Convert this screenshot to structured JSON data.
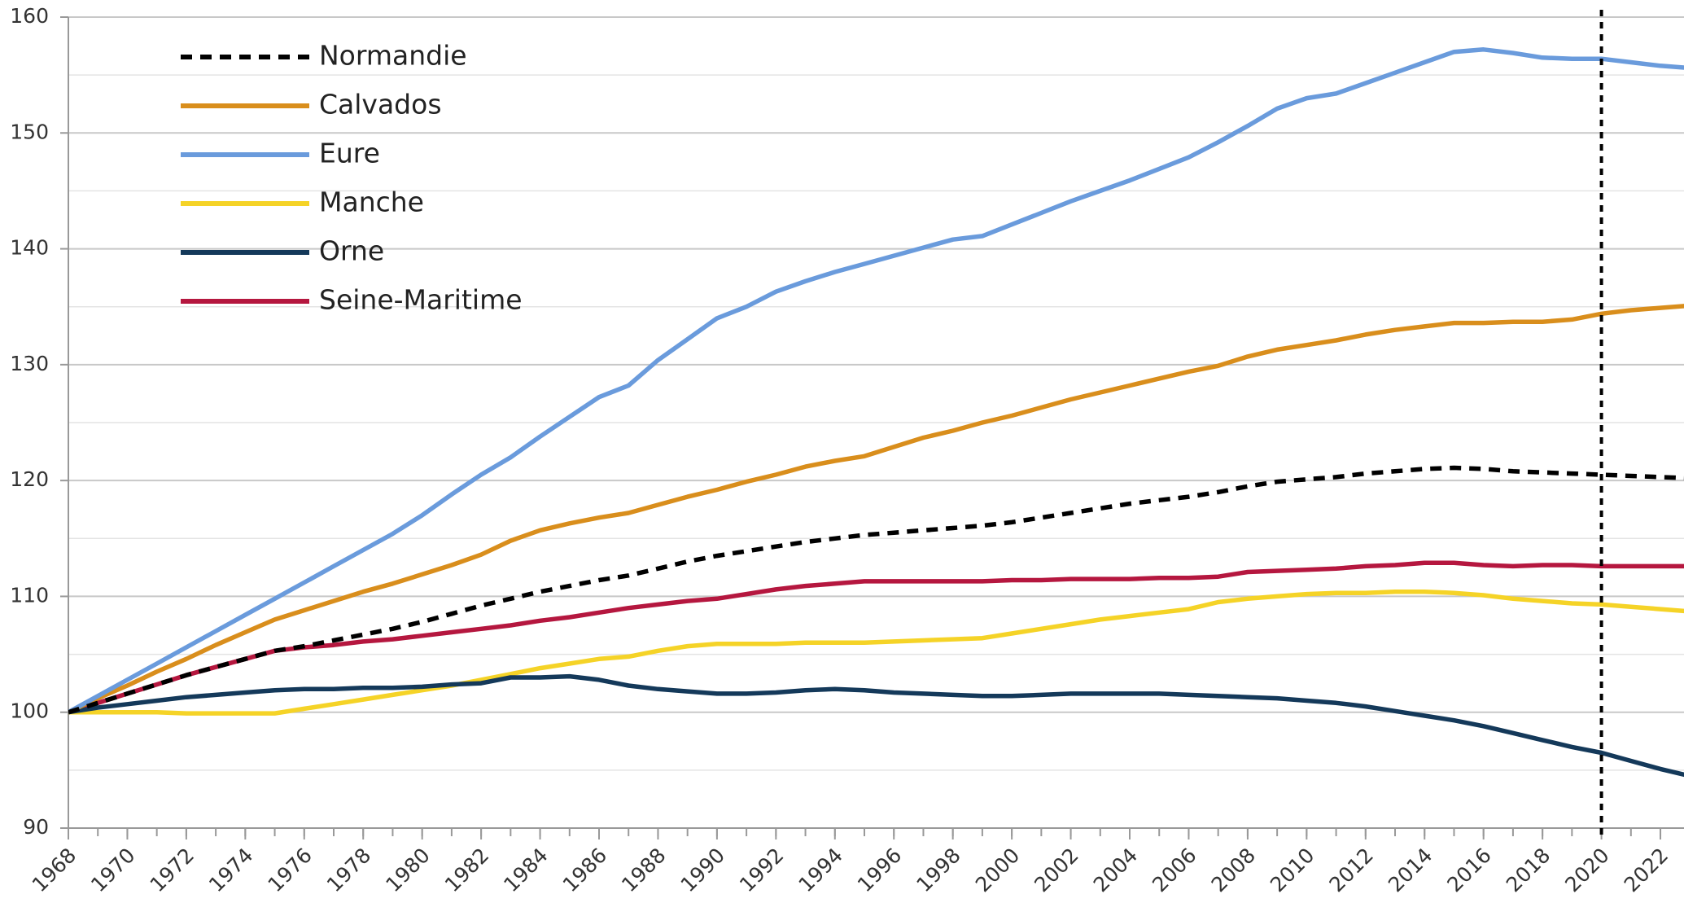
{
  "chart_data": {
    "type": "line",
    "x": [
      1968,
      1969,
      1970,
      1971,
      1972,
      1973,
      1974,
      1975,
      1976,
      1977,
      1978,
      1979,
      1980,
      1981,
      1982,
      1983,
      1984,
      1985,
      1986,
      1987,
      1988,
      1989,
      1990,
      1991,
      1992,
      1993,
      1994,
      1995,
      1996,
      1997,
      1998,
      1999,
      2000,
      2001,
      2002,
      2003,
      2004,
      2005,
      2006,
      2007,
      2008,
      2009,
      2010,
      2011,
      2012,
      2013,
      2014,
      2015,
      2016,
      2017,
      2018,
      2019,
      2020,
      2021,
      2022,
      2023
    ],
    "series": [
      {
        "name": "Normandie",
        "color": "#000000",
        "dashed": true,
        "values": [
          100,
          100.8,
          101.6,
          102.4,
          103.2,
          103.9,
          104.6,
          105.3,
          105.7,
          106.2,
          106.7,
          107.2,
          107.8,
          108.5,
          109.2,
          109.8,
          110.4,
          110.9,
          111.4,
          111.8,
          112.4,
          113,
          113.5,
          113.9,
          114.3,
          114.7,
          115,
          115.3,
          115.5,
          115.7,
          115.9,
          116.1,
          116.4,
          116.8,
          117.2,
          117.6,
          118,
          118.3,
          118.6,
          119,
          119.5,
          119.9,
          120.1,
          120.3,
          120.6,
          120.8,
          121,
          121.1,
          121,
          120.8,
          120.7,
          120.6,
          120.5,
          120.4,
          120.3,
          120.2
        ]
      },
      {
        "name": "Calvados",
        "color": "#d98e1c",
        "values": [
          100,
          101.2,
          102.3,
          103.5,
          104.6,
          105.8,
          106.9,
          108,
          108.8,
          109.6,
          110.4,
          111.1,
          111.9,
          112.7,
          113.6,
          114.8,
          115.7,
          116.3,
          116.8,
          117.2,
          117.9,
          118.6,
          119.2,
          119.9,
          120.5,
          121.2,
          121.7,
          122.1,
          122.9,
          123.7,
          124.3,
          125,
          125.6,
          126.3,
          127,
          127.6,
          128.2,
          128.8,
          129.4,
          129.9,
          130.7,
          131.3,
          131.7,
          132.1,
          132.6,
          133,
          133.3,
          133.6,
          133.6,
          133.7,
          133.7,
          133.9,
          134.4,
          134.7,
          134.9,
          135.1
        ]
      },
      {
        "name": "Eure",
        "color": "#6a9bdc",
        "values": [
          100,
          101.4,
          102.8,
          104.2,
          105.6,
          107,
          108.4,
          109.8,
          111.2,
          112.6,
          114,
          115.4,
          117,
          118.8,
          120.5,
          122,
          123.8,
          125.5,
          127.2,
          128.2,
          130.4,
          132.2,
          134,
          135,
          136.3,
          137.2,
          138,
          138.7,
          139.4,
          140.1,
          140.8,
          141.1,
          142.1,
          143.1,
          144.1,
          145,
          145.9,
          146.9,
          147.9,
          149.2,
          150.6,
          152.1,
          153,
          153.4,
          154.3,
          155.2,
          156.1,
          157,
          157.2,
          156.9,
          156.5,
          156.4,
          156.4,
          156.1,
          155.8,
          155.6
        ]
      },
      {
        "name": "Manche",
        "color": "#f5d327",
        "values": [
          100,
          100,
          100,
          100,
          99.9,
          99.9,
          99.9,
          99.9,
          100.3,
          100.7,
          101.1,
          101.5,
          101.9,
          102.3,
          102.8,
          103.3,
          103.8,
          104.2,
          104.6,
          104.8,
          105.3,
          105.7,
          105.9,
          105.9,
          105.9,
          106,
          106,
          106,
          106.1,
          106.2,
          106.3,
          106.4,
          106.8,
          107.2,
          107.6,
          108,
          108.3,
          108.6,
          108.9,
          109.5,
          109.8,
          110,
          110.2,
          110.3,
          110.3,
          110.4,
          110.4,
          110.3,
          110.1,
          109.8,
          109.6,
          109.4,
          109.3,
          109.1,
          108.9,
          108.7
        ]
      },
      {
        "name": "Orne",
        "color": "#14395a",
        "values": [
          100,
          100.4,
          100.7,
          101,
          101.3,
          101.5,
          101.7,
          101.9,
          102,
          102,
          102.1,
          102.1,
          102.2,
          102.4,
          102.5,
          103,
          103,
          103.1,
          102.8,
          102.3,
          102,
          101.8,
          101.6,
          101.6,
          101.7,
          101.9,
          102,
          101.9,
          101.7,
          101.6,
          101.5,
          101.4,
          101.4,
          101.5,
          101.6,
          101.6,
          101.6,
          101.6,
          101.5,
          101.4,
          101.3,
          101.2,
          101,
          100.8,
          100.5,
          100.1,
          99.7,
          99.3,
          98.8,
          98.2,
          97.6,
          97,
          96.5,
          95.8,
          95.1,
          94.5
        ]
      },
      {
        "name": "Seine-Maritime",
        "color": "#b5173f",
        "values": [
          100,
          100.8,
          101.6,
          102.4,
          103.2,
          103.9,
          104.6,
          105.3,
          105.6,
          105.8,
          106.1,
          106.3,
          106.6,
          106.9,
          107.2,
          107.5,
          107.9,
          108.2,
          108.6,
          109,
          109.3,
          109.6,
          109.8,
          110.2,
          110.6,
          110.9,
          111.1,
          111.3,
          111.3,
          111.3,
          111.3,
          111.3,
          111.4,
          111.4,
          111.5,
          111.5,
          111.5,
          111.6,
          111.6,
          111.7,
          112.1,
          112.2,
          112.3,
          112.4,
          112.6,
          112.7,
          112.9,
          112.9,
          112.7,
          112.6,
          112.7,
          112.7,
          112.6,
          112.6,
          112.6,
          112.6
        ]
      }
    ],
    "xlim": [
      1968,
      2022.8
    ],
    "xticks": [
      1968,
      1970,
      1972,
      1974,
      1976,
      1978,
      1980,
      1982,
      1984,
      1986,
      1988,
      1990,
      1992,
      1994,
      1996,
      1998,
      2000,
      2002,
      2004,
      2006,
      2008,
      2010,
      2012,
      2014,
      2016,
      2018,
      2020,
      2022
    ],
    "ylim": [
      90,
      160
    ],
    "yticks": [
      90,
      100,
      110,
      120,
      130,
      140,
      150,
      160
    ],
    "y_minor_grid": [
      95,
      105,
      115,
      125,
      135,
      145,
      155
    ],
    "vline": 2020,
    "grid": true,
    "legend": "upper left"
  }
}
